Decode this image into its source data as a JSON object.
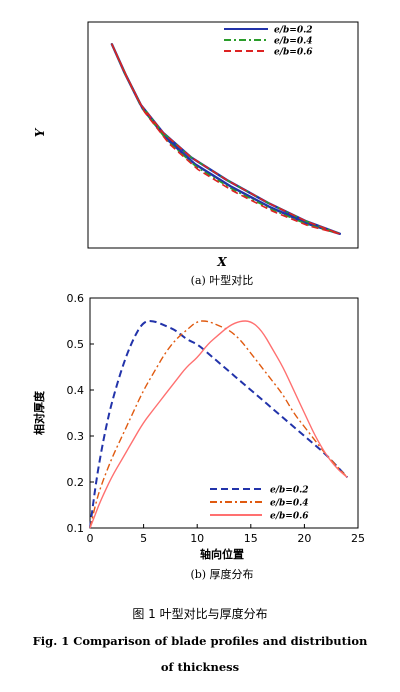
{
  "figure": {
    "caption_cn": "图 1   叶型对比与厚度分布",
    "caption_en_line1": "Fig. 1  Comparison of blade profiles and distribution",
    "caption_en_line2": "of thickness"
  },
  "chart_data": [
    {
      "type": "line",
      "panel": "a",
      "subtitle": "(a) 叶型对比",
      "xlabel": "X",
      "ylabel": "Y",
      "grid": false,
      "ticks_shown": false,
      "legend_placement": "top-right",
      "series": [
        {
          "name": "e/b=0.2",
          "color": "#2233aa",
          "style": "solid"
        },
        {
          "name": "e/b=0.4",
          "color": "#2a9d2a",
          "style": "dash-dot"
        },
        {
          "name": "e/b=0.6",
          "color": "#dd2222",
          "style": "dashed"
        }
      ],
      "profile": {
        "leading_edge": [
          0.07,
          0.96
        ],
        "trailing_edge": [
          0.96,
          0.04
        ],
        "upper_surface": [
          [
            0.07,
            0.96
          ],
          [
            0.12,
            0.82
          ],
          [
            0.18,
            0.67
          ],
          [
            0.27,
            0.53
          ],
          [
            0.38,
            0.41
          ],
          [
            0.52,
            0.3
          ],
          [
            0.68,
            0.19
          ],
          [
            0.83,
            0.1
          ],
          [
            0.96,
            0.04
          ]
        ],
        "lower_surface_thickness": {
          "e/b=0.2": 0.032,
          "e/b=0.4": 0.046,
          "e/b=0.6": 0.058
        }
      }
    },
    {
      "type": "line",
      "panel": "b",
      "subtitle": "(b) 厚度分布",
      "xlabel": "轴向位置",
      "ylabel": "相对厚度",
      "xlim": [
        0,
        25
      ],
      "ylim": [
        0.1,
        0.6
      ],
      "xticks": [
        "0",
        "5",
        "10",
        "15",
        "20",
        "25"
      ],
      "yticks": [
        "0.1",
        "0.2",
        "0.3",
        "0.4",
        "0.5",
        "0.6"
      ],
      "grid": false,
      "legend_placement": "bottom-right",
      "series": [
        {
          "name": "e/b=0.2",
          "color": "#2233aa",
          "style": "dashed",
          "x": [
            0,
            0.5,
            1,
            1.5,
            2,
            3,
            4,
            5,
            6,
            7,
            8,
            9,
            10,
            11,
            12,
            13,
            14,
            15,
            16,
            17,
            18,
            19,
            20,
            21,
            22,
            23,
            24
          ],
          "y": [
            0.1,
            0.19,
            0.26,
            0.32,
            0.37,
            0.45,
            0.51,
            0.55,
            0.55,
            0.54,
            0.53,
            0.51,
            0.5,
            0.48,
            0.46,
            0.44,
            0.42,
            0.4,
            0.38,
            0.36,
            0.34,
            0.32,
            0.3,
            0.28,
            0.26,
            0.235,
            0.21
          ]
        },
        {
          "name": "e/b=0.4",
          "color": "#e05a10",
          "style": "dash-dot",
          "x": [
            0,
            0.5,
            1,
            2,
            3,
            4,
            5,
            6,
            7,
            8,
            9,
            10,
            11,
            12,
            13,
            14,
            15,
            16,
            17,
            18,
            19,
            20,
            21,
            22,
            23,
            24
          ],
          "y": [
            0.1,
            0.15,
            0.19,
            0.25,
            0.3,
            0.35,
            0.4,
            0.44,
            0.48,
            0.51,
            0.53,
            0.55,
            0.55,
            0.54,
            0.53,
            0.51,
            0.48,
            0.45,
            0.42,
            0.39,
            0.35,
            0.32,
            0.29,
            0.26,
            0.235,
            0.21
          ]
        },
        {
          "name": "e/b=0.6",
          "color": "#ff7070",
          "style": "solid",
          "x": [
            0,
            0.5,
            1,
            2,
            3,
            4,
            5,
            6,
            7,
            8,
            9,
            10,
            11,
            12,
            13,
            14,
            15,
            16,
            17,
            18,
            19,
            20,
            21,
            22,
            23,
            24
          ],
          "y": [
            0.1,
            0.13,
            0.16,
            0.21,
            0.25,
            0.29,
            0.33,
            0.36,
            0.39,
            0.42,
            0.45,
            0.47,
            0.5,
            0.52,
            0.54,
            0.55,
            0.55,
            0.53,
            0.49,
            0.45,
            0.4,
            0.35,
            0.3,
            0.26,
            0.23,
            0.21
          ]
        }
      ]
    }
  ]
}
